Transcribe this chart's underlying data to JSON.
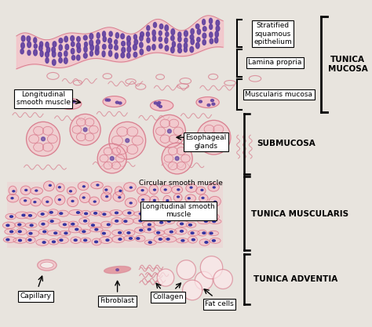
{
  "fig_width": 4.74,
  "fig_height": 4.17,
  "dpi": 100,
  "bg_color": "#e8e4de",
  "paper_color": "#f5f3ef",
  "pink_fill": "#f5c0c8",
  "pink_stroke": "#d88090",
  "pink_deep": "#e07080",
  "purple_nuc": "#6040a0",
  "blue_nuc": "#3030a0",
  "black": "#000000",
  "white": "#ffffff",
  "gray_text": "#333333",
  "label_fontsize": 7.5,
  "small_fontsize": 6.5,
  "section_fontsize": 7.5,
  "labels": {
    "stratified": "Stratified\nsquamous\nepithelium",
    "lamina": "Lamina propria",
    "muscularis_mucosa": "Muscularis mucosa",
    "tunica_mucosa": "TUNICA\nMUCOSA",
    "longitudinal_sm": "Longitudinal\nsmooth muscle",
    "esophageal": "Esophageal\nglands",
    "submucosa": "SUBMUCOSA",
    "circular": "Circular smooth muscle",
    "longitudinal_sm2": "Longitudinal smooth\nmuscle",
    "tunica_muscularis": "TUNICA MUSCULARIS",
    "tunica_adventia": "TUNICA ADVENTIA",
    "capillary": "Capillary",
    "fibroblast": "Fibroblast",
    "collagen": "Collagen",
    "fat_cells": "Fat cells"
  }
}
